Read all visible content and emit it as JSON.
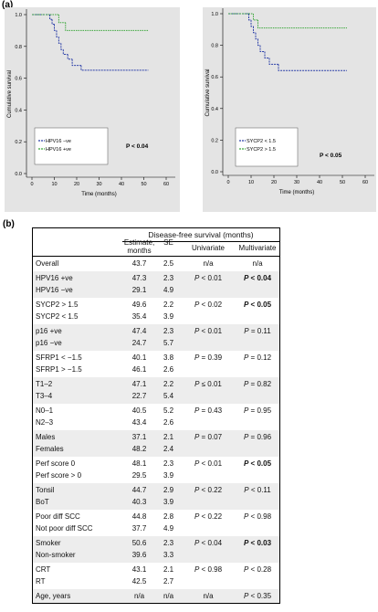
{
  "panel_labels": {
    "a": "(a)",
    "b": "(b)"
  },
  "chart_data": [
    {
      "type": "step",
      "ylabel": "Cumulative survival",
      "xlabel": "Time (months)",
      "annotation": "P < 0.04",
      "xlim": [
        0,
        60
      ],
      "ylim": [
        0,
        1
      ],
      "xticks": [
        0,
        10,
        20,
        30,
        40,
        50,
        60
      ],
      "yticks": [
        {
          "value": 0,
          "label": "0.0"
        },
        {
          "value": 0.2,
          "label": "0.2"
        },
        {
          "value": 0.4,
          "label": "0.4"
        },
        {
          "value": 0.6,
          "label": "0.6"
        },
        {
          "value": 0.8,
          "label": "0.8"
        },
        {
          "value": 1,
          "label": "1.0"
        }
      ],
      "series": [
        {
          "name": "HPV16 −ve",
          "color": "#2b3fa8",
          "x": [
            0,
            8,
            9,
            10,
            11,
            12,
            13,
            14,
            16,
            18,
            22,
            52
          ],
          "values": [
            1,
            0.97,
            0.94,
            0.9,
            0.86,
            0.82,
            0.78,
            0.75,
            0.72,
            0.68,
            0.65,
            0.65
          ]
        },
        {
          "name": "HPV16 +ve",
          "color": "#3aa63a",
          "x": [
            0,
            12,
            15,
            52
          ],
          "values": [
            1,
            0.95,
            0.9,
            0.9
          ]
        }
      ]
    },
    {
      "type": "step",
      "ylabel": "Cumulative survival",
      "xlabel": "Time (months)",
      "annotation": "P < 0.05",
      "xlim": [
        0,
        60
      ],
      "ylim": [
        0,
        1
      ],
      "xticks": [
        0,
        10,
        20,
        30,
        40,
        50,
        60
      ],
      "yticks": [
        {
          "value": 0,
          "label": "0.0"
        },
        {
          "value": 0.2,
          "label": "0.2"
        },
        {
          "value": 0.4,
          "label": "0.4"
        },
        {
          "value": 0.6,
          "label": "0.6"
        },
        {
          "value": 0.8,
          "label": "0.8"
        },
        {
          "value": 1,
          "label": "1.0"
        }
      ],
      "series": [
        {
          "name": "SYCP2 < 1.5",
          "color": "#2b3fa8",
          "x": [
            0,
            9,
            10,
            11,
            12,
            13,
            14,
            16,
            18,
            22,
            52
          ],
          "values": [
            1,
            0.96,
            0.92,
            0.88,
            0.84,
            0.8,
            0.76,
            0.72,
            0.68,
            0.64,
            0.64
          ]
        },
        {
          "name": "SYCP2 > 1.5",
          "color": "#3aa63a",
          "x": [
            0,
            11,
            13,
            52
          ],
          "values": [
            1,
            0.96,
            0.91,
            0.91
          ]
        }
      ]
    }
  ],
  "table": {
    "group_header": "Disease-free survival (months)",
    "columns": [
      "Estimate, months",
      "SE",
      "Univariate",
      "Multivariate"
    ],
    "groups": [
      {
        "shaded": false,
        "rows": [
          {
            "label": "Overall",
            "estimate": "43.7",
            "se": "2.5",
            "univariate": "n/a",
            "multivariate": "n/a"
          }
        ]
      },
      {
        "shaded": true,
        "rows": [
          {
            "label": "HPV16 +ve",
            "estimate": "47.3",
            "se": "2.3",
            "univariate": "P < 0.01",
            "multivariate": "P < 0.04",
            "bold": true
          },
          {
            "label": "HPV16 −ve",
            "estimate": "29.1",
            "se": "4.9"
          }
        ]
      },
      {
        "shaded": false,
        "rows": [
          {
            "label": "SYCP2 > 1.5",
            "estimate": "49.6",
            "se": "2.2",
            "univariate": "P < 0.02",
            "multivariate": "P < 0.05",
            "bold": true
          },
          {
            "label": "SYCP2 < 1.5",
            "estimate": "35.4",
            "se": "3.9"
          }
        ]
      },
      {
        "shaded": true,
        "rows": [
          {
            "label": "p16 +ve",
            "estimate": "47.4",
            "se": "2.3",
            "univariate": "P < 0.01",
            "multivariate": "P = 0.11"
          },
          {
            "label": "p16 −ve",
            "estimate": "24.7",
            "se": "5.7"
          }
        ]
      },
      {
        "shaded": false,
        "rows": [
          {
            "label": "SFRP1 < −1.5",
            "estimate": "40.1",
            "se": "3.8",
            "univariate": "P = 0.39",
            "multivariate": "P = 0.12"
          },
          {
            "label": "SFRP1 > −1.5",
            "estimate": "46.1",
            "se": "2.6"
          }
        ]
      },
      {
        "shaded": true,
        "rows": [
          {
            "label": "T1–2",
            "estimate": "47.1",
            "se": "2.2",
            "univariate": "P ≤ 0.01",
            "multivariate": "P = 0.82"
          },
          {
            "label": "T3–4",
            "estimate": "22.7",
            "se": "5.4"
          }
        ]
      },
      {
        "shaded": false,
        "rows": [
          {
            "label": "N0–1",
            "estimate": "40.5",
            "se": "5.2",
            "univariate": "P = 0.43",
            "multivariate": "P = 0.95"
          },
          {
            "label": "N2–3",
            "estimate": "43.4",
            "se": "2.6"
          }
        ]
      },
      {
        "shaded": true,
        "rows": [
          {
            "label": "Males",
            "estimate": "37.1",
            "se": "2.1",
            "univariate": "P = 0.07",
            "multivariate": "P = 0.96"
          },
          {
            "label": "Females",
            "estimate": "48.2",
            "se": "2.4"
          }
        ]
      },
      {
        "shaded": false,
        "rows": [
          {
            "label": "Perf score 0",
            "estimate": "48.1",
            "se": "2.3",
            "univariate": "P < 0.01",
            "multivariate": "P < 0.05",
            "bold": true
          },
          {
            "label": "Perf score > 0",
            "estimate": "29.5",
            "se": "3.9"
          }
        ]
      },
      {
        "shaded": true,
        "rows": [
          {
            "label": "Tonsil",
            "estimate": "44.7",
            "se": "2.9",
            "univariate": "P < 0.22",
            "multivariate": "P < 0.11"
          },
          {
            "label": "BoT",
            "estimate": "40.3",
            "se": "3.9"
          }
        ]
      },
      {
        "shaded": false,
        "rows": [
          {
            "label": "Poor diff SCC",
            "estimate": "44.8",
            "se": "2.8",
            "univariate": "P < 0.22",
            "multivariate": "P < 0.98"
          },
          {
            "label": "Not poor diff SCC",
            "estimate": "37.7",
            "se": "4.9"
          }
        ]
      },
      {
        "shaded": true,
        "rows": [
          {
            "label": "Smoker",
            "estimate": "50.6",
            "se": "2.3",
            "univariate": "P < 0.04",
            "multivariate": "P < 0.03",
            "bold": true
          },
          {
            "label": "Non-smoker",
            "estimate": "39.6",
            "se": "3.3"
          }
        ]
      },
      {
        "shaded": false,
        "rows": [
          {
            "label": "CRT",
            "estimate": "43.1",
            "se": "2.1",
            "univariate": "P < 0.98",
            "multivariate": "P < 0.28"
          },
          {
            "label": "RT",
            "estimate": "42.5",
            "se": "2.7"
          }
        ]
      },
      {
        "shaded": true,
        "rows": [
          {
            "label": "Age, years",
            "estimate": "n/a",
            "se": "n/a",
            "univariate": "n/a",
            "multivariate": "P < 0.35"
          }
        ]
      }
    ]
  }
}
